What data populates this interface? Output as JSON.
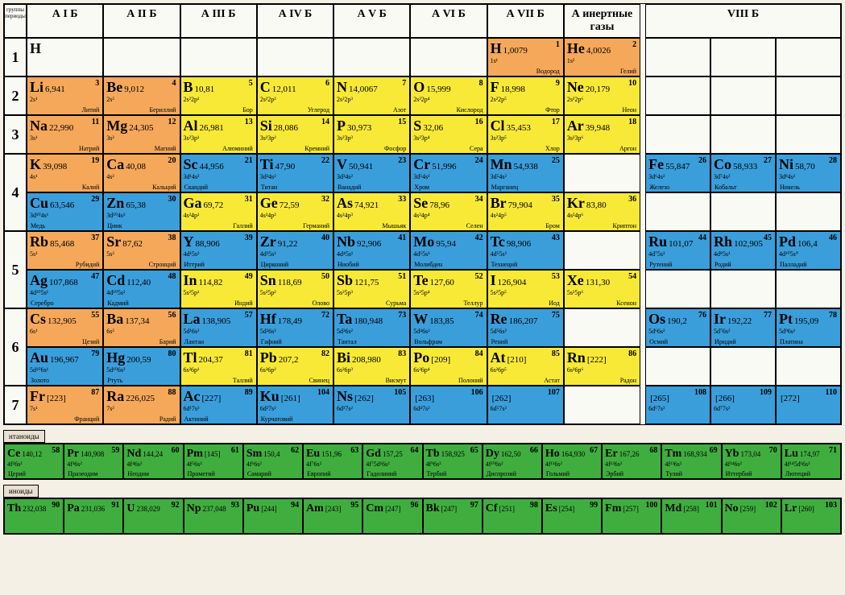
{
  "colors": {
    "orange": "#f5a85a",
    "yellow": "#f8e936",
    "blue": "#3a9edb",
    "green": "#3fae3f",
    "beige": "#fafaf5"
  },
  "corner": "группы\nпериоды",
  "headers": [
    "А I Б",
    "А II Б",
    "А III Б",
    "А IV Б",
    "А V Б",
    "А VI Б",
    "А VII Б",
    "А инертные газы",
    "VIII Б"
  ],
  "periods": [
    "1",
    "2",
    "3",
    "4",
    "5",
    "6",
    "7"
  ],
  "cells": {
    "H_sym": {
      "sym": "H",
      "mass": "",
      "num": "",
      "conf": "",
      "name": "",
      "c": "beige"
    },
    "H": {
      "sym": "H",
      "mass": "1,0079",
      "num": "1",
      "conf": "1s¹",
      "name": "Водород",
      "c": "orange"
    },
    "He": {
      "sym": "He",
      "mass": "4,0026",
      "num": "2",
      "conf": "1s²",
      "name": "Гелий",
      "c": "orange"
    },
    "Li": {
      "sym": "Li",
      "mass": "6,941",
      "num": "3",
      "conf": "2s¹",
      "name": "Литий",
      "c": "orange"
    },
    "Be": {
      "sym": "Be",
      "mass": "9,012",
      "num": "4",
      "conf": "2s²",
      "name": "Бериллий",
      "c": "orange"
    },
    "B": {
      "sym": "B",
      "mass": "10,81",
      "num": "5",
      "conf": "2s²2p¹",
      "name": "Бор",
      "c": "yellow"
    },
    "C": {
      "sym": "C",
      "mass": "12,011",
      "num": "6",
      "conf": "2s²2p²",
      "name": "Углерод",
      "c": "yellow"
    },
    "N": {
      "sym": "N",
      "mass": "14,0067",
      "num": "7",
      "conf": "2s²2p³",
      "name": "Азот",
      "c": "yellow"
    },
    "O": {
      "sym": "O",
      "mass": "15,999",
      "num": "8",
      "conf": "2s²2p⁴",
      "name": "Кислород",
      "c": "yellow"
    },
    "F": {
      "sym": "F",
      "mass": "18,998",
      "num": "9",
      "conf": "2s²2p⁵",
      "name": "Фтор",
      "c": "yellow"
    },
    "Ne": {
      "sym": "Ne",
      "mass": "20,179",
      "num": "10",
      "conf": "2s²2p⁶",
      "name": "Неон",
      "c": "yellow"
    },
    "Na": {
      "sym": "Na",
      "mass": "22,990",
      "num": "11",
      "conf": "3s¹",
      "name": "Натрий",
      "c": "orange"
    },
    "Mg": {
      "sym": "Mg",
      "mass": "24,305",
      "num": "12",
      "conf": "3s²",
      "name": "Магний",
      "c": "orange"
    },
    "Al": {
      "sym": "Al",
      "mass": "26,981",
      "num": "13",
      "conf": "3s²3p¹",
      "name": "Алюминий",
      "c": "yellow"
    },
    "Si": {
      "sym": "Si",
      "mass": "28,086",
      "num": "14",
      "conf": "3s²3p²",
      "name": "Кремний",
      "c": "yellow"
    },
    "P": {
      "sym": "P",
      "mass": "30,973",
      "num": "15",
      "conf": "3s²3p³",
      "name": "Фосфор",
      "c": "yellow"
    },
    "S": {
      "sym": "S",
      "mass": "32,06",
      "num": "16",
      "conf": "3s²3p⁴",
      "name": "Сера",
      "c": "yellow"
    },
    "Cl": {
      "sym": "Cl",
      "mass": "35,453",
      "num": "17",
      "conf": "3s²3p⁵",
      "name": "Хлор",
      "c": "yellow"
    },
    "Ar": {
      "sym": "Ar",
      "mass": "39,948",
      "num": "18",
      "conf": "3s²3p⁶",
      "name": "Аргон",
      "c": "yellow"
    },
    "K": {
      "sym": "K",
      "mass": "39,098",
      "num": "19",
      "conf": "4s¹",
      "name": "Калий",
      "c": "orange"
    },
    "Ca": {
      "sym": "Ca",
      "mass": "40,08",
      "num": "20",
      "conf": "4s²",
      "name": "Кальций",
      "c": "orange"
    },
    "Sc": {
      "sym": "Sc",
      "mass": "44,956",
      "num": "21",
      "conf": "3d¹4s²",
      "name": "Скандий",
      "c": "blue"
    },
    "Ti": {
      "sym": "Ti",
      "mass": "47,90",
      "num": "22",
      "conf": "3d²4s²",
      "name": "Титан",
      "c": "blue"
    },
    "V": {
      "sym": "V",
      "mass": "50,941",
      "num": "23",
      "conf": "3d³4s²",
      "name": "Ванадий",
      "c": "blue"
    },
    "Cr": {
      "sym": "Cr",
      "mass": "51,996",
      "num": "24",
      "conf": "3d⁵4s¹",
      "name": "Хром",
      "c": "blue"
    },
    "Mn": {
      "sym": "Mn",
      "mass": "54,938",
      "num": "25",
      "conf": "3d⁵4s²",
      "name": "Марганец",
      "c": "blue"
    },
    "Fe": {
      "sym": "Fe",
      "mass": "55,847",
      "num": "26",
      "conf": "3d⁶4s²",
      "name": "Железо",
      "c": "blue"
    },
    "Co": {
      "sym": "Co",
      "mass": "58,933",
      "num": "27",
      "conf": "3d⁷4s²",
      "name": "Кобальт",
      "c": "blue"
    },
    "Ni": {
      "sym": "Ni",
      "mass": "58,70",
      "num": "28",
      "conf": "3d⁸4s²",
      "name": "Никель",
      "c": "blue"
    },
    "Cu": {
      "sym": "Cu",
      "mass": "63,546",
      "num": "29",
      "conf": "3d¹⁰4s¹",
      "name": "Медь",
      "c": "blue"
    },
    "Zn": {
      "sym": "Zn",
      "mass": "65,38",
      "num": "30",
      "conf": "3d¹⁰4s²",
      "name": "Цинк",
      "c": "blue"
    },
    "Ga": {
      "sym": "Ga",
      "mass": "69,72",
      "num": "31",
      "conf": "4s²4p¹",
      "name": "Галлий",
      "c": "yellow"
    },
    "Ge": {
      "sym": "Ge",
      "mass": "72,59",
      "num": "32",
      "conf": "4s²4p²",
      "name": "Германий",
      "c": "yellow"
    },
    "As": {
      "sym": "As",
      "mass": "74,921",
      "num": "33",
      "conf": "4s²4p³",
      "name": "Мышьяк",
      "c": "yellow"
    },
    "Se": {
      "sym": "Se",
      "mass": "78,96",
      "num": "34",
      "conf": "4s²4p⁴",
      "name": "Селен",
      "c": "yellow"
    },
    "Br": {
      "sym": "Br",
      "mass": "79,904",
      "num": "35",
      "conf": "4s²4p⁵",
      "name": "Бром",
      "c": "yellow"
    },
    "Kr": {
      "sym": "Kr",
      "mass": "83,80",
      "num": "36",
      "conf": "4s²4p⁶",
      "name": "Криптон",
      "c": "yellow"
    },
    "Rb": {
      "sym": "Rb",
      "mass": "85,468",
      "num": "37",
      "conf": "5s¹",
      "name": "Рубидий",
      "c": "orange"
    },
    "Sr": {
      "sym": "Sr",
      "mass": "87,62",
      "num": "38",
      "conf": "5s²",
      "name": "Стронций",
      "c": "orange"
    },
    "Y": {
      "sym": "Y",
      "mass": "88,906",
      "num": "39",
      "conf": "4d¹5s²",
      "name": "Иттрий",
      "c": "blue"
    },
    "Zr": {
      "sym": "Zr",
      "mass": "91,22",
      "num": "40",
      "conf": "4d²5s²",
      "name": "Цирконий",
      "c": "blue"
    },
    "Nb": {
      "sym": "Nb",
      "mass": "92,906",
      "num": "41",
      "conf": "4d⁴5s¹",
      "name": "Ниобий",
      "c": "blue"
    },
    "Mo": {
      "sym": "Mo",
      "mass": "95,94",
      "num": "42",
      "conf": "4d⁵5s¹",
      "name": "Молибден",
      "c": "blue"
    },
    "Tc": {
      "sym": "Tc",
      "mass": "98,906",
      "num": "43",
      "conf": "4d⁵5s²",
      "name": "Технеций",
      "c": "blue"
    },
    "Ru": {
      "sym": "Ru",
      "mass": "101,07",
      "num": "44",
      "conf": "4d⁷5s¹",
      "name": "Рутений",
      "c": "blue"
    },
    "Rh": {
      "sym": "Rh",
      "mass": "102,905",
      "num": "45",
      "conf": "4d⁸5s¹",
      "name": "Родий",
      "c": "blue"
    },
    "Pd": {
      "sym": "Pd",
      "mass": "106,4",
      "num": "46",
      "conf": "4d¹⁰5s⁰",
      "name": "Палладий",
      "c": "blue"
    },
    "Ag": {
      "sym": "Ag",
      "mass": "107,868",
      "num": "47",
      "conf": "4d¹⁰5s¹",
      "name": "Серебро",
      "c": "blue"
    },
    "Cd": {
      "sym": "Cd",
      "mass": "112,40",
      "num": "48",
      "conf": "4d¹⁰5s²",
      "name": "Кадмий",
      "c": "blue"
    },
    "In": {
      "sym": "In",
      "mass": "114,82",
      "num": "49",
      "conf": "5s²5p¹",
      "name": "Индий",
      "c": "yellow"
    },
    "Sn": {
      "sym": "Sn",
      "mass": "118,69",
      "num": "50",
      "conf": "5s²5p²",
      "name": "Олово",
      "c": "yellow"
    },
    "Sb": {
      "sym": "Sb",
      "mass": "121,75",
      "num": "51",
      "conf": "5s²5p³",
      "name": "Сурьма",
      "c": "yellow"
    },
    "Te": {
      "sym": "Te",
      "mass": "127,60",
      "num": "52",
      "conf": "5s²5p⁴",
      "name": "Теллур",
      "c": "yellow"
    },
    "I": {
      "sym": "I",
      "mass": "126,904",
      "num": "53",
      "conf": "5s²5p⁵",
      "name": "Иод",
      "c": "yellow"
    },
    "Xe": {
      "sym": "Xe",
      "mass": "131,30",
      "num": "54",
      "conf": "5s²5p⁶",
      "name": "Ксенон",
      "c": "yellow"
    },
    "Cs": {
      "sym": "Cs",
      "mass": "132,905",
      "num": "55",
      "conf": "6s¹",
      "name": "Цезий",
      "c": "orange"
    },
    "Ba": {
      "sym": "Ba",
      "mass": "137,34",
      "num": "56",
      "conf": "6s²",
      "name": "Барий",
      "c": "orange"
    },
    "La": {
      "sym": "La",
      "mass": "138,905",
      "num": "57",
      "conf": "5d¹6s²",
      "name": "Лантан",
      "c": "blue"
    },
    "Hf": {
      "sym": "Hf",
      "mass": "178,49",
      "num": "72",
      "conf": "5d²6s²",
      "name": "Гафний",
      "c": "blue"
    },
    "Ta": {
      "sym": "Ta",
      "mass": "180,948",
      "num": "73",
      "conf": "5d³6s²",
      "name": "Тантал",
      "c": "blue"
    },
    "W": {
      "sym": "W",
      "mass": "183,85",
      "num": "74",
      "conf": "5d⁴6s²",
      "name": "Вольфрам",
      "c": "blue"
    },
    "Re": {
      "sym": "Re",
      "mass": "186,207",
      "num": "75",
      "conf": "5d⁵6s²",
      "name": "Рений",
      "c": "blue"
    },
    "Os": {
      "sym": "Os",
      "mass": "190,2",
      "num": "76",
      "conf": "5d⁶6s²",
      "name": "Осмий",
      "c": "blue"
    },
    "Ir": {
      "sym": "Ir",
      "mass": "192,22",
      "num": "77",
      "conf": "5d⁷6s²",
      "name": "Иридий",
      "c": "blue"
    },
    "Pt": {
      "sym": "Pt",
      "mass": "195,09",
      "num": "78",
      "conf": "5d⁹6s¹",
      "name": "Платина",
      "c": "blue"
    },
    "Au": {
      "sym": "Au",
      "mass": "196,967",
      "num": "79",
      "conf": "5d¹⁰6s¹",
      "name": "Золото",
      "c": "blue"
    },
    "Hg": {
      "sym": "Hg",
      "mass": "200,59",
      "num": "80",
      "conf": "5d¹⁰6s²",
      "name": "Ртуть",
      "c": "blue"
    },
    "Tl": {
      "sym": "Tl",
      "mass": "204,37",
      "num": "81",
      "conf": "6s²6p¹",
      "name": "Таллий",
      "c": "yellow"
    },
    "Pb": {
      "sym": "Pb",
      "mass": "207,2",
      "num": "82",
      "conf": "6s²6p²",
      "name": "Свинец",
      "c": "yellow"
    },
    "Bi": {
      "sym": "Bi",
      "mass": "208,980",
      "num": "83",
      "conf": "6s²6p³",
      "name": "Висмут",
      "c": "yellow"
    },
    "Po": {
      "sym": "Po",
      "mass": "[209]",
      "num": "84",
      "conf": "6s²6p⁴",
      "name": "Полоний",
      "c": "yellow"
    },
    "At": {
      "sym": "At",
      "mass": "[210]",
      "num": "85",
      "conf": "6s²6p⁵",
      "name": "Астат",
      "c": "yellow"
    },
    "Rn": {
      "sym": "Rn",
      "mass": "[222]",
      "num": "86",
      "conf": "6s²6p⁶",
      "name": "Радон",
      "c": "yellow"
    },
    "Fr": {
      "sym": "Fr",
      "mass": "[223]",
      "num": "87",
      "conf": "7s¹",
      "name": "Франций",
      "c": "orange"
    },
    "Ra": {
      "sym": "Ra",
      "mass": "226,025",
      "num": "88",
      "conf": "7s²",
      "name": "Радий",
      "c": "orange"
    },
    "Ac": {
      "sym": "Ac",
      "mass": "[227]",
      "num": "89",
      "conf": "6d¹7s²",
      "name": "Актиний",
      "c": "blue"
    },
    "Ku": {
      "sym": "Ku",
      "mass": "[261]",
      "num": "104",
      "conf": "6d²7s²",
      "name": "Курчатовий",
      "c": "blue"
    },
    "Ns": {
      "sym": "Ns",
      "mass": "[262]",
      "num": "105",
      "conf": "6d³7s²",
      "name": "",
      "c": "blue"
    },
    "E106": {
      "sym": "",
      "mass": "[263]",
      "num": "106",
      "conf": "6d⁴7s²",
      "name": "",
      "c": "blue"
    },
    "E107": {
      "sym": "",
      "mass": "[262]",
      "num": "107",
      "conf": "6d⁵7s²",
      "name": "",
      "c": "blue"
    },
    "E108": {
      "sym": "",
      "mass": "[265]",
      "num": "108",
      "conf": "6d⁶7s²",
      "name": "",
      "c": "blue"
    },
    "E109": {
      "sym": "",
      "mass": "[266]",
      "num": "109",
      "conf": "6d⁷7s²",
      "name": "",
      "c": "blue"
    },
    "E110": {
      "sym": "",
      "mass": "[272]",
      "num": "110",
      "conf": "",
      "name": "",
      "c": "blue"
    }
  },
  "layout": [
    [
      "p1",
      "H_sym",
      "-",
      "-",
      "-",
      "-",
      "-",
      "H",
      "He",
      "g",
      "-",
      "-",
      "-"
    ],
    [
      "p2",
      "Li",
      "Be",
      "B",
      "C",
      "N",
      "O",
      "F",
      "Ne",
      "g",
      "-",
      "-",
      "-"
    ],
    [
      "p3",
      "Na",
      "Mg",
      "Al",
      "Si",
      "P",
      "S",
      "Cl",
      "Ar",
      "g",
      "-",
      "-",
      "-"
    ],
    [
      "p4a",
      "K",
      "Ca",
      "Sc",
      "Ti",
      "V",
      "Cr",
      "Mn",
      "-",
      "g",
      "Fe",
      "Co",
      "Ni"
    ],
    [
      "p4b",
      "Cu",
      "Zn",
      "Ga",
      "Ge",
      "As",
      "Se",
      "Br",
      "Kr",
      "g",
      "-",
      "-",
      "-"
    ],
    [
      "p5a",
      "Rb",
      "Sr",
      "Y",
      "Zr",
      "Nb",
      "Mo",
      "Tc",
      "-",
      "g",
      "Ru",
      "Rh",
      "Pd"
    ],
    [
      "p5b",
      "Ag",
      "Cd",
      "In",
      "Sn",
      "Sb",
      "Te",
      "I",
      "Xe",
      "g",
      "-",
      "-",
      "-"
    ],
    [
      "p6a",
      "Cs",
      "Ba",
      "La",
      "Hf",
      "Ta",
      "W",
      "Re",
      "-",
      "g",
      "Os",
      "Ir",
      "Pt"
    ],
    [
      "p6b",
      "Au",
      "Hg",
      "Tl",
      "Pb",
      "Bi",
      "Po",
      "At",
      "Rn",
      "g",
      "-",
      "-",
      "-"
    ],
    [
      "p7",
      "Fr",
      "Ra",
      "Ac",
      "Ku",
      "Ns",
      "E106",
      "E107",
      "-",
      "g",
      "E108",
      "E109",
      "E110"
    ]
  ],
  "period_spans": {
    "p1": 1,
    "p2": 1,
    "p3": 1,
    "p4a": 2,
    "p5a": 2,
    "p6a": 2,
    "p7": 1
  },
  "lan_label": "нтаноиды",
  "act_label": "иноиды",
  "lanthanides": [
    {
      "sym": "Ce",
      "mass": "140,12",
      "num": "58",
      "conf": "4f²6s²",
      "name": "Церий"
    },
    {
      "sym": "Pr",
      "mass": "140,908",
      "num": "59",
      "conf": "4f³6s²",
      "name": "Празеодим"
    },
    {
      "sym": "Nd",
      "mass": "144,24",
      "num": "60",
      "conf": "4f⁴6s²",
      "name": "Неодим"
    },
    {
      "sym": "Pm",
      "mass": "[145]",
      "num": "61",
      "conf": "4f⁵6s²",
      "name": "Прометий"
    },
    {
      "sym": "Sm",
      "mass": "150,4",
      "num": "62",
      "conf": "4f⁶6s²",
      "name": "Самарий"
    },
    {
      "sym": "Eu",
      "mass": "151,96",
      "num": "63",
      "conf": "4f⁷6s²",
      "name": "Европий"
    },
    {
      "sym": "Gd",
      "mass": "157,25",
      "num": "64",
      "conf": "4f⁷5d¹6s²",
      "name": "Гадолиний"
    },
    {
      "sym": "Tb",
      "mass": "158,925",
      "num": "65",
      "conf": "4f⁹6s²",
      "name": "Тербий"
    },
    {
      "sym": "Dy",
      "mass": "162,50",
      "num": "66",
      "conf": "4f¹⁰6s²",
      "name": "Диспрозий"
    },
    {
      "sym": "Ho",
      "mass": "164,930",
      "num": "67",
      "conf": "4f¹¹6s²",
      "name": "Гольмий"
    },
    {
      "sym": "Er",
      "mass": "167,26",
      "num": "68",
      "conf": "4f¹²6s²",
      "name": "Эрбий"
    },
    {
      "sym": "Tm",
      "mass": "168,934",
      "num": "69",
      "conf": "4f¹³6s²",
      "name": "Тулий"
    },
    {
      "sym": "Yb",
      "mass": "173,04",
      "num": "70",
      "conf": "4f¹⁴6s²",
      "name": "Иттербий"
    },
    {
      "sym": "Lu",
      "mass": "174,97",
      "num": "71",
      "conf": "4f¹⁴5d¹6s²",
      "name": "Лютеций"
    }
  ],
  "actinides": [
    {
      "sym": "Th",
      "mass": "232,038",
      "num": "90"
    },
    {
      "sym": "Pa",
      "mass": "231,036",
      "num": "91"
    },
    {
      "sym": "U",
      "mass": "238,029",
      "num": "92"
    },
    {
      "sym": "Np",
      "mass": "237,048",
      "num": "93"
    },
    {
      "sym": "Pu",
      "mass": "[244]",
      "num": "94"
    },
    {
      "sym": "Am",
      "mass": "[243]",
      "num": "95"
    },
    {
      "sym": "Cm",
      "mass": "[247]",
      "num": "96"
    },
    {
      "sym": "Bk",
      "mass": "[247]",
      "num": "97"
    },
    {
      "sym": "Cf",
      "mass": "[251]",
      "num": "98"
    },
    {
      "sym": "Es",
      "mass": "[254]",
      "num": "99"
    },
    {
      "sym": "Fm",
      "mass": "[257]",
      "num": "100"
    },
    {
      "sym": "Md",
      "mass": "[258]",
      "num": "101"
    },
    {
      "sym": "No",
      "mass": "[259]",
      "num": "102"
    },
    {
      "sym": "Lr",
      "mass": "[260]",
      "num": "103"
    }
  ]
}
